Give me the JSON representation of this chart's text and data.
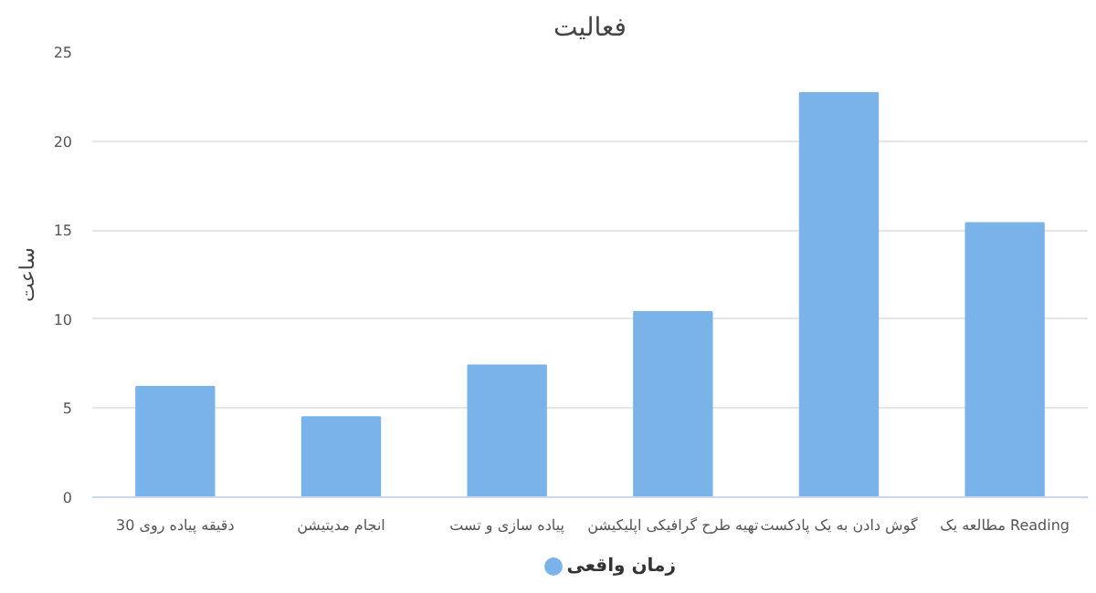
{
  "chart_data": {
    "type": "bar",
    "title": "فعالیت",
    "ylabel": "ساعت",
    "categories": [
      "30 دقیقه پیاده روی",
      "انجام مدیتیشن",
      "پیاده سازی و تست",
      "تهیه طرح گرافیکی اپلیکیشن",
      "گوش دادن به یک پادکست",
      "مطالعه یک Reading"
    ],
    "series": [
      {
        "name": "زمان واقعی",
        "color": "#7ab3ea",
        "values": [
          6.2,
          4.5,
          7.4,
          10.4,
          22.7,
          15.4
        ]
      }
    ],
    "ylim": [
      0,
      25
    ],
    "yticks": [
      0,
      5,
      10,
      15,
      20,
      25
    ],
    "grid": "y",
    "legend": "bottom"
  }
}
